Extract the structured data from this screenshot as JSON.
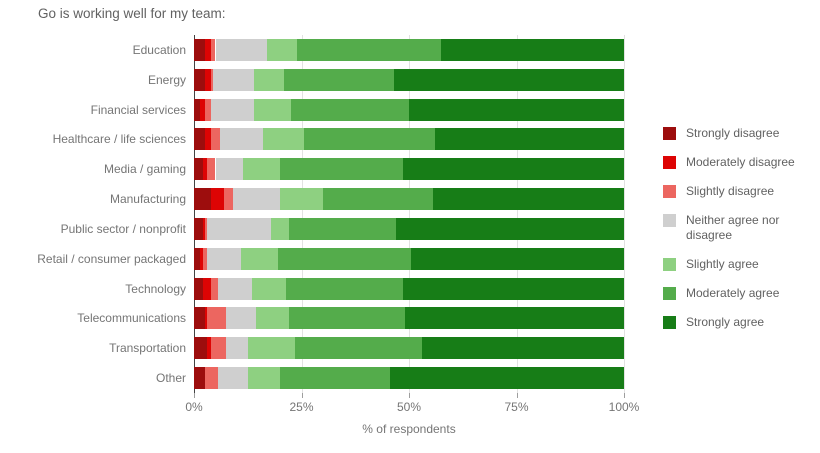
{
  "title": "Go is working well for my team:",
  "chart_data": {
    "type": "bar",
    "stacked": true,
    "orientation": "horizontal",
    "title": "Go is working well for my team:",
    "xlabel": "% of respondents",
    "ylabel": "",
    "xlim": [
      0,
      100
    ],
    "x_ticks": [
      {
        "value": 0,
        "label": "0%"
      },
      {
        "value": 25,
        "label": "25%"
      },
      {
        "value": 50,
        "label": "50%"
      },
      {
        "value": 75,
        "label": "75%"
      },
      {
        "value": 100,
        "label": "100%"
      }
    ],
    "grid": true,
    "legend_position": "right",
    "categories": [
      "Education",
      "Energy",
      "Financial services",
      "Healthcare / life sciences",
      "Media / gaming",
      "Manufacturing",
      "Public sector / nonprofit",
      "Retail / consumer packaged",
      "Technology",
      "Telecommunications",
      "Transportation",
      "Other"
    ],
    "series": [
      {
        "name": "Strongly disagree",
        "color": "#9d0d0d",
        "values": [
          2.5,
          2.5,
          1.5,
          2.5,
          2,
          4,
          2,
          1.5,
          2,
          2.5,
          3,
          2.5
        ]
      },
      {
        "name": "Moderately disagree",
        "color": "#dd0404",
        "values": [
          1.5,
          1.5,
          1,
          1.5,
          1,
          3,
          0.5,
          0.5,
          2,
          0.5,
          1,
          0
        ]
      },
      {
        "name": "Slightly disagree",
        "color": "#ec6660",
        "values": [
          1,
          0.5,
          1.5,
          2,
          2,
          2,
          0.5,
          1,
          1.5,
          4.5,
          3.5,
          3
        ]
      },
      {
        "name": "Neither agree nor disagree",
        "color": "#cfcfcf",
        "values": [
          12,
          9.5,
          10,
          10,
          6.5,
          11,
          15,
          8,
          8,
          7,
          5,
          7
        ]
      },
      {
        "name": "Slightly agree",
        "color": "#8ed081",
        "values": [
          7,
          7,
          8.5,
          9.5,
          8.5,
          10,
          4,
          8.5,
          8,
          7.5,
          11,
          7.5
        ]
      },
      {
        "name": "Moderately agree",
        "color": "#54ac4b",
        "values": [
          33.5,
          25.5,
          27.5,
          30.5,
          28.5,
          25.5,
          25,
          31,
          27,
          27,
          29.5,
          25.5
        ]
      },
      {
        "name": "Strongly agree",
        "color": "#177d17",
        "values": [
          42.5,
          53.5,
          50,
          44,
          51.5,
          44.5,
          53,
          49.5,
          51.5,
          51,
          47,
          54.5
        ]
      }
    ]
  },
  "style_colors": {
    "gridline": "#e2e2e2",
    "axis_line": "#424242",
    "tick": "#9e9e9e",
    "tick_label": "#757575",
    "category_label": "#757575",
    "title_text": "#616161",
    "legend_text": "#616161"
  }
}
